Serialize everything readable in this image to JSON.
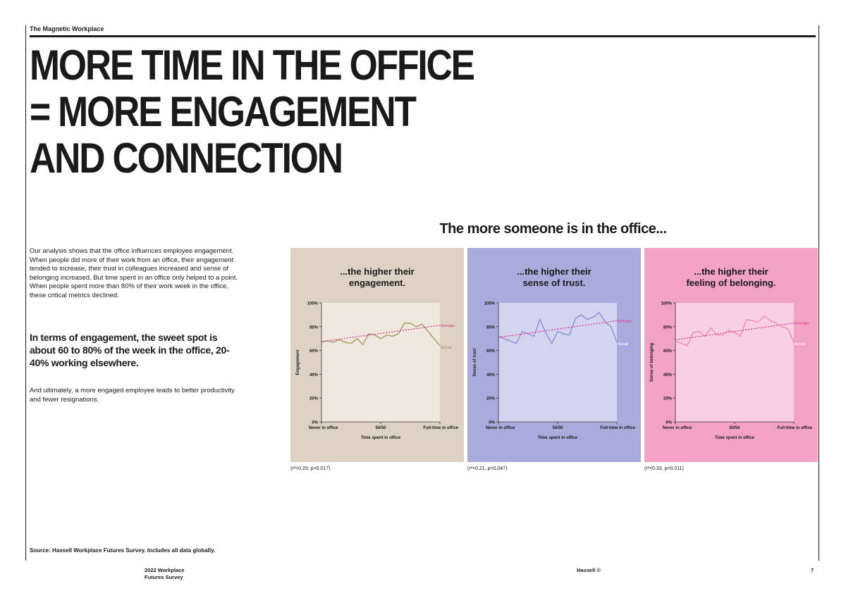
{
  "header": {
    "brand": "The Magnetic Workplace"
  },
  "headline": {
    "lines": [
      "MORE TIME IN THE OFFICE",
      "= MORE ENGAGEMENT",
      "AND CONNECTION"
    ]
  },
  "body": {
    "intro": "Our analysis shows that the office influences employee engagement. When people did more of their work from an office, their engagement tended to increase, their trust in colleagues increased and sense of belonging increased. But time spent in an office only helped to a point. When people spent more than 80% of their work week in the office, these critical metrics declined.",
    "callout": "In terms of engagement, the sweet spot is about 60 to 80% of the week in the office, 20-40% working elsewhere.",
    "closing": "And ultimately, a more engaged employee leads to better productivity and fewer resignations."
  },
  "charts_heading": "The more someone is in the office...",
  "chart_data": [
    {
      "type": "line",
      "title": "...the higher their engagement.",
      "title_lines": [
        "...the higher their",
        "engagement."
      ],
      "xlabel": "Time spent in office",
      "ylabel": "Engagement",
      "x_ticks": [
        "Never in office",
        "50/50",
        "Full-time in office"
      ],
      "y_ticks": [
        "0%",
        "20%",
        "40%",
        "60%",
        "80%",
        "100%"
      ],
      "ylim": [
        0,
        100
      ],
      "x": [
        0,
        5,
        10,
        15,
        20,
        25,
        30,
        35,
        40,
        45,
        50,
        55,
        60,
        65,
        70,
        75,
        80,
        85,
        90,
        95,
        100
      ],
      "series": [
        {
          "name": "Actual",
          "values": [
            67,
            68,
            67,
            69,
            67,
            66,
            70,
            65,
            74,
            73,
            70,
            73,
            72,
            74,
            83,
            83,
            80,
            82,
            76,
            70,
            64
          ]
        },
        {
          "name": "Average",
          "values": [
            67.5,
            68.2,
            68.9,
            69.5,
            70.2,
            70.9,
            71.6,
            72.3,
            73.0,
            73.6,
            74.3,
            75.0,
            75.7,
            76.4,
            77.1,
            77.7,
            78.4,
            79.1,
            79.8,
            80.5,
            81.2
          ]
        }
      ],
      "stat": "(r²=0.29, p=0.017)"
    },
    {
      "type": "line",
      "title": "...the higher their sense of trust.",
      "title_lines": [
        "...the higher their",
        "sense of trust."
      ],
      "xlabel": "Time spent in office",
      "ylabel": "Sense of trust",
      "x_ticks": [
        "Never in office",
        "50/50",
        "Full-time in office"
      ],
      "y_ticks": [
        "0%",
        "20%",
        "40%",
        "60%",
        "80%",
        "100%"
      ],
      "ylim": [
        0,
        100
      ],
      "x": [
        0,
        5,
        10,
        15,
        20,
        25,
        30,
        35,
        40,
        45,
        50,
        55,
        60,
        65,
        70,
        75,
        80,
        85,
        90,
        95,
        100
      ],
      "series": [
        {
          "name": "Actual",
          "values": [
            72,
            70,
            68,
            66,
            76,
            74,
            72,
            86,
            75,
            66,
            76,
            74,
            73,
            87,
            90,
            86,
            88,
            92,
            84,
            80,
            67
          ]
        },
        {
          "name": "Average",
          "values": [
            71.0,
            71.7,
            72.4,
            73.1,
            73.8,
            74.5,
            75.2,
            75.9,
            76.6,
            77.3,
            78.0,
            78.7,
            79.4,
            80.1,
            80.8,
            81.5,
            82.2,
            82.9,
            83.6,
            84.3,
            85.0
          ]
        }
      ],
      "stat": "(r²=0.21, p=0.047)"
    },
    {
      "type": "line",
      "title": "...the higher their feeling of belonging.",
      "title_lines": [
        "...the higher their",
        "feeling of belonging."
      ],
      "xlabel": "Time spent in office",
      "ylabel": "Sense of belonging",
      "x_ticks": [
        "Never in office",
        "50/50",
        "Full-time in office"
      ],
      "y_ticks": [
        "0%",
        "20%",
        "40%",
        "60%",
        "80%",
        "100%"
      ],
      "ylim": [
        0,
        100
      ],
      "x": [
        0,
        5,
        10,
        15,
        20,
        25,
        30,
        35,
        40,
        45,
        50,
        55,
        60,
        65,
        70,
        75,
        80,
        85,
        90,
        95,
        100
      ],
      "series": [
        {
          "name": "Actual",
          "values": [
            68,
            66,
            64,
            75,
            76,
            72,
            79,
            73,
            73,
            77,
            75,
            72,
            86,
            85,
            84,
            89,
            85,
            83,
            80,
            78,
            67
          ]
        },
        {
          "name": "Average",
          "values": [
            69.0,
            69.7,
            70.4,
            71.1,
            71.8,
            72.5,
            73.2,
            73.9,
            74.6,
            75.3,
            76.0,
            76.7,
            77.4,
            78.1,
            78.8,
            79.5,
            80.2,
            80.9,
            81.6,
            82.3,
            83.0
          ]
        }
      ],
      "stat": "(r²=0.33, p=0.011)"
    }
  ],
  "panel_colors": [
    {
      "bg": "#ddd2c3",
      "plot": "#efe8df",
      "line": "#a49a5e",
      "label": "#9b9157"
    },
    {
      "bg": "#a8abdc",
      "plot": "#d3d4ef",
      "line": "#8c90d6",
      "label": "#ffffff"
    },
    {
      "bg": "#f2a2c4",
      "plot": "#f8d0e2",
      "line": "#ee8ab5",
      "label": "#ffffff"
    }
  ],
  "trend_color": "#e0338a",
  "footer": {
    "source": "Source: Hassell Workplace Futures Survey. Includes all data globally.",
    "report_line1": "2022 Workplace",
    "report_line2": "Futures Survey",
    "company": "Hassell ©",
    "page": "7"
  }
}
